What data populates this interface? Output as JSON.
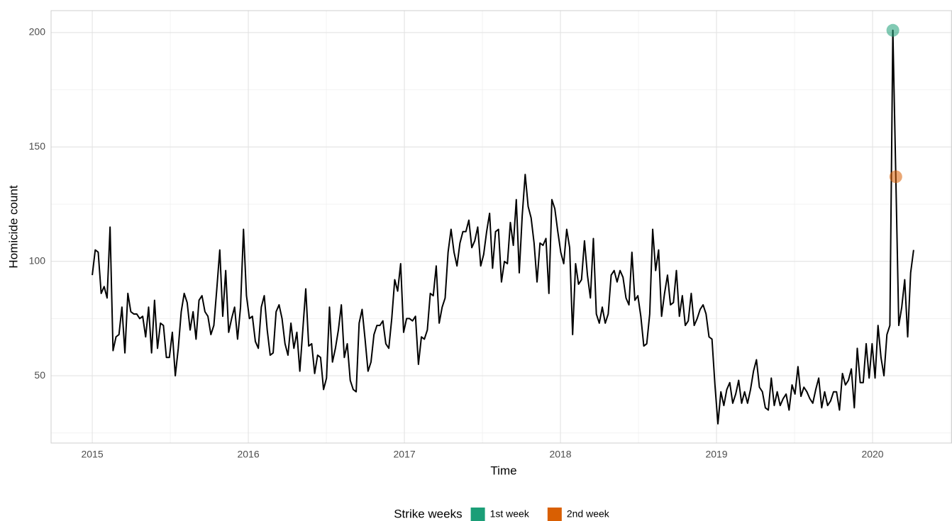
{
  "chart_data": {
    "type": "line",
    "x_label": "Time",
    "y_label": "Homicide count",
    "xlim": [
      2014.736,
      2020.509
    ],
    "ylim": [
      20.6,
      209.6
    ],
    "xticks": [
      2015,
      2016,
      2017,
      2018,
      2019,
      2020
    ],
    "yticks": [
      50,
      100,
      150,
      200
    ],
    "grid": true,
    "x": [
      2015,
      2015.019,
      2015.038,
      2015.057,
      2015.076,
      2015.095,
      2015.114,
      2015.133,
      2015.152,
      2015.171,
      2015.19,
      2015.209,
      2015.228,
      2015.247,
      2015.266,
      2015.285,
      2015.304,
      2015.323,
      2015.342,
      2015.361,
      2015.38,
      2015.399,
      2015.418,
      2015.437,
      2015.456,
      2015.475,
      2015.494,
      2015.513,
      2015.532,
      2015.551,
      2015.57,
      2015.589,
      2015.608,
      2015.627,
      2015.646,
      2015.665,
      2015.684,
      2015.703,
      2015.722,
      2015.741,
      2015.76,
      2015.779,
      2015.798,
      2015.817,
      2015.836,
      2015.855,
      2015.874,
      2015.893,
      2015.912,
      2015.931,
      2015.95,
      2015.969,
      2015.988,
      2016.007,
      2016.026,
      2016.045,
      2016.064,
      2016.083,
      2016.102,
      2016.121,
      2016.14,
      2016.159,
      2016.178,
      2016.197,
      2016.216,
      2016.235,
      2016.254,
      2016.273,
      2016.292,
      2016.311,
      2016.33,
      2016.349,
      2016.368,
      2016.387,
      2016.406,
      2016.425,
      2016.444,
      2016.463,
      2016.482,
      2016.501,
      2016.52,
      2016.539,
      2016.558,
      2016.577,
      2016.596,
      2016.615,
      2016.634,
      2016.653,
      2016.672,
      2016.691,
      2016.71,
      2016.729,
      2016.748,
      2016.767,
      2016.786,
      2016.805,
      2016.824,
      2016.843,
      2016.862,
      2016.881,
      2016.9,
      2016.919,
      2016.938,
      2016.957,
      2016.976,
      2016.995,
      2017.014,
      2017.033,
      2017.052,
      2017.071,
      2017.09,
      2017.109,
      2017.128,
      2017.147,
      2017.166,
      2017.185,
      2017.204,
      2017.223,
      2017.242,
      2017.261,
      2017.28,
      2017.299,
      2017.318,
      2017.337,
      2017.356,
      2017.375,
      2017.394,
      2017.413,
      2017.432,
      2017.451,
      2017.47,
      2017.489,
      2017.508,
      2017.527,
      2017.546,
      2017.565,
      2017.584,
      2017.603,
      2017.622,
      2017.641,
      2017.66,
      2017.679,
      2017.698,
      2017.717,
      2017.736,
      2017.755,
      2017.774,
      2017.793,
      2017.812,
      2017.831,
      2017.85,
      2017.869,
      2017.888,
      2017.907,
      2017.926,
      2017.945,
      2017.964,
      2017.983,
      2018.002,
      2018.021,
      2018.04,
      2018.059,
      2018.078,
      2018.097,
      2018.116,
      2018.135,
      2018.154,
      2018.173,
      2018.192,
      2018.211,
      2018.23,
      2018.249,
      2018.268,
      2018.287,
      2018.306,
      2018.325,
      2018.344,
      2018.363,
      2018.382,
      2018.401,
      2018.42,
      2018.439,
      2018.458,
      2018.477,
      2018.496,
      2018.515,
      2018.534,
      2018.553,
      2018.572,
      2018.591,
      2018.61,
      2018.629,
      2018.648,
      2018.667,
      2018.686,
      2018.705,
      2018.724,
      2018.743,
      2018.762,
      2018.781,
      2018.8,
      2018.819,
      2018.838,
      2018.857,
      2018.876,
      2018.895,
      2018.914,
      2018.933,
      2018.952,
      2018.971,
      2018.99,
      2019.009,
      2019.028,
      2019.047,
      2019.066,
      2019.085,
      2019.104,
      2019.123,
      2019.142,
      2019.161,
      2019.18,
      2019.199,
      2019.218,
      2019.237,
      2019.256,
      2019.275,
      2019.294,
      2019.313,
      2019.332,
      2019.351,
      2019.37,
      2019.389,
      2019.408,
      2019.427,
      2019.446,
      2019.465,
      2019.484,
      2019.503,
      2019.522,
      2019.541,
      2019.56,
      2019.579,
      2019.598,
      2019.617,
      2019.636,
      2019.655,
      2019.674,
      2019.693,
      2019.712,
      2019.731,
      2019.75,
      2019.769,
      2019.788,
      2019.807,
      2019.826,
      2019.845,
      2019.864,
      2019.883,
      2019.902,
      2019.921,
      2019.94,
      2019.959,
      2019.978,
      2019.997,
      2020.016,
      2020.035,
      2020.054,
      2020.073,
      2020.092,
      2020.111,
      2020.13,
      2020.149,
      2020.168,
      2020.187,
      2020.206,
      2020.225,
      2020.244,
      2020.263
    ],
    "series": [
      {
        "color": "#000000",
        "values": [
          94,
          105,
          104,
          86,
          89,
          84,
          115,
          61,
          67,
          68,
          80,
          60,
          86,
          78,
          77,
          77,
          75,
          76,
          67,
          80,
          60,
          83,
          62,
          73,
          72,
          58,
          58,
          69,
          50,
          62,
          78,
          86,
          82,
          70,
          78,
          66,
          83,
          85,
          78,
          76,
          68,
          72,
          88,
          105,
          76,
          96,
          69,
          75,
          80,
          66,
          80,
          114,
          85,
          75,
          76,
          65,
          62,
          80,
          85,
          70,
          59,
          60,
          78,
          81,
          75,
          64,
          59,
          73,
          62,
          69,
          52,
          70,
          88,
          63,
          64,
          51,
          59,
          58,
          44,
          49,
          80,
          56,
          62,
          70,
          81,
          58,
          64,
          48,
          44,
          43,
          73,
          79,
          66,
          52,
          56,
          68,
          72,
          72,
          74,
          64,
          62,
          75,
          92,
          87,
          99,
          69,
          75,
          75,
          74,
          76,
          55,
          67,
          66,
          70,
          86,
          85,
          98,
          73,
          80,
          84,
          104,
          114,
          104,
          98,
          108,
          113,
          113,
          118,
          106,
          109,
          115,
          98,
          103,
          113,
          121,
          97,
          113,
          114,
          91,
          100,
          99,
          117,
          107,
          127,
          95,
          120,
          138,
          124,
          119,
          108,
          91,
          108,
          107,
          110,
          86,
          127,
          123,
          113,
          104,
          99,
          114,
          106,
          68,
          99,
          90,
          92,
          109,
          94,
          84,
          110,
          77,
          73,
          80,
          73,
          77,
          94,
          96,
          91,
          96,
          93,
          84,
          81,
          104,
          83,
          85,
          76,
          63,
          64,
          77,
          114,
          96,
          105,
          76,
          86,
          94,
          81,
          82,
          96,
          76,
          85,
          72,
          74,
          86,
          72,
          75,
          79,
          81,
          77,
          67,
          66,
          46,
          29,
          43,
          37,
          44,
          47,
          38,
          42,
          48,
          38,
          43,
          38,
          44,
          52,
          57,
          45,
          43,
          36,
          35,
          49,
          37,
          43,
          37,
          40,
          42,
          35,
          46,
          42,
          54,
          41,
          45,
          43,
          40,
          38,
          44,
          49,
          36,
          43,
          37,
          39,
          43,
          43,
          35,
          51,
          46,
          48,
          53,
          36,
          62,
          47,
          47,
          64,
          49,
          64,
          49,
          72,
          58,
          50,
          68,
          72,
          201,
          137,
          72,
          80,
          92,
          67,
          95,
          105
        ]
      }
    ],
    "highlights": {
      "title": "Strike weeks",
      "series": [
        {
          "name": "1st week",
          "color": "#1b9e77",
          "x": [
            2020.13
          ],
          "values": [
            201
          ]
        },
        {
          "name": "2nd week",
          "color": "#d95f02",
          "x": [
            2020.149
          ],
          "values": [
            137
          ]
        }
      ]
    },
    "legend_position": "bottom"
  }
}
